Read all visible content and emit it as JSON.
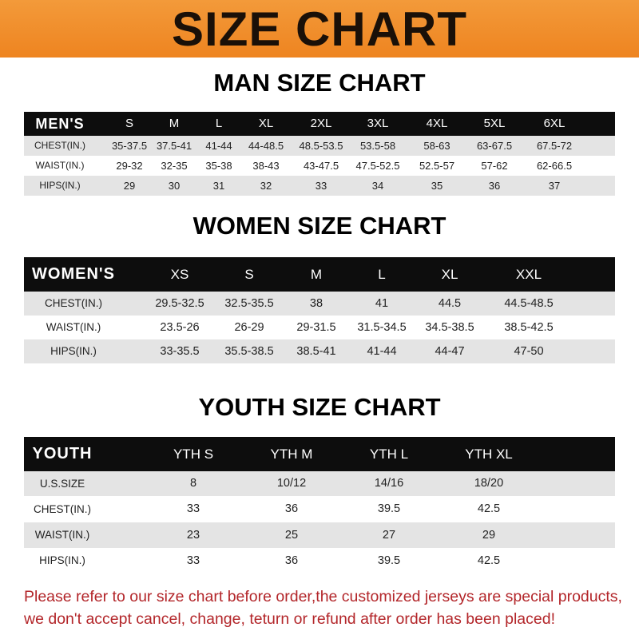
{
  "banner_title": "SIZE CHART",
  "men": {
    "title": "MAN SIZE CHART",
    "header": [
      "MEN'S",
      "S",
      "M",
      "L",
      "XL",
      "2XL",
      "3XL",
      "4XL",
      "5XL",
      "6XL"
    ],
    "rows": [
      [
        "CHEST(IN.)",
        "35-37.5",
        "37.5-41",
        "41-44",
        "44-48.5",
        "48.5-53.5",
        "53.5-58",
        "58-63",
        "63-67.5",
        "67.5-72"
      ],
      [
        "WAIST(IN.)",
        "29-32",
        "32-35",
        "35-38",
        "38-43",
        "43-47.5",
        "47.5-52.5",
        "52.5-57",
        "57-62",
        "62-66.5"
      ],
      [
        "HIPS(IN.)",
        "29",
        "30",
        "31",
        "32",
        "33",
        "34",
        "35",
        "36",
        "37"
      ]
    ]
  },
  "women": {
    "title": "WOMEN SIZE CHART",
    "header": [
      "WOMEN'S",
      "XS",
      "S",
      "M",
      "L",
      "XL",
      "XXL"
    ],
    "rows": [
      [
        "CHEST(IN.)",
        "29.5-32.5",
        "32.5-35.5",
        "38",
        "41",
        "44.5",
        "44.5-48.5"
      ],
      [
        "WAIST(IN.)",
        "23.5-26",
        "26-29",
        "29-31.5",
        "31.5-34.5",
        "34.5-38.5",
        "38.5-42.5"
      ],
      [
        "HIPS(IN.)",
        "33-35.5",
        "35.5-38.5",
        "38.5-41",
        "41-44",
        "44-47",
        "47-50"
      ]
    ]
  },
  "youth": {
    "title": "YOUTH SIZE CHART",
    "header": [
      "YOUTH",
      "YTH S",
      "YTH M",
      "YTH L",
      "YTH XL"
    ],
    "rows": [
      [
        "U.S.SIZE",
        "8",
        "10/12",
        "14/16",
        "18/20"
      ],
      [
        "CHEST(IN.)",
        "33",
        "36",
        "39.5",
        "42.5"
      ],
      [
        "WAIST(IN.)",
        "23",
        "25",
        "27",
        "29"
      ],
      [
        "HIPS(IN.)",
        "33",
        "36",
        "39.5",
        "42.5"
      ]
    ]
  },
  "footer": {
    "line1": "Please refer to our size chart before order,the customized jerseys are special products,",
    "line2": "we don't accept cancel, change, teturn or refund after order has been placed!"
  },
  "colors": {
    "banner": "#ee8420",
    "header_row": "#0d0d0d",
    "stripe": "#e4e4e4",
    "footer_text": "#b3262a"
  }
}
